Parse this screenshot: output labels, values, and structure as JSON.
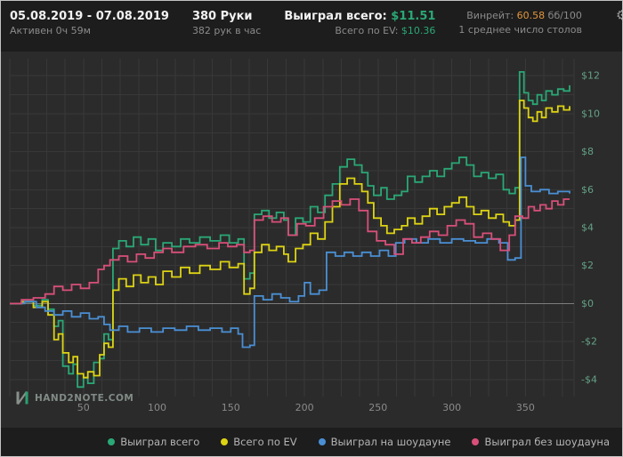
{
  "header": {
    "date_range": "05.08.2019 - 07.08.2019",
    "active_time": "Активен 0ч 59м",
    "hands": "380 Руки",
    "hands_per_hour": "382 рук в час",
    "won_total_label": "Выиграл всего:",
    "won_total_value": "$11.51",
    "ev_total_label": "Всего по EV:",
    "ev_total_value": "$10.36",
    "winrate_label": "Винрейт:",
    "winrate_value": "60.58",
    "winrate_units": "бб/100",
    "avg_tables": "1 среднее число столов",
    "gear_icon": "⚙"
  },
  "logo": {
    "text": "HAND2NOTE.COM"
  },
  "colors": {
    "accent_green": "#2aa876",
    "series_yellow": "#ddd313",
    "series_blue": "#4a8fd4",
    "series_pink": "#d94f7a",
    "winrate_orange": "#e0963c",
    "header_bg": "#1d1d1d",
    "chart_bg": "#2b2b2b"
  },
  "chart_data": {
    "type": "line",
    "step": true,
    "title": "",
    "xlabel": "",
    "ylabel": "",
    "xlim": [
      0,
      383
    ],
    "ylim": [
      -4.9,
      12.9
    ],
    "x_grid_step": 12.5,
    "y_grid_step": 1,
    "grid_color": "#383838",
    "zero_line_color": "#7d7d7d",
    "x_label_color": "#8a8a8a",
    "y_label_color": "#64a186",
    "x_ticks": [
      50,
      100,
      150,
      200,
      250,
      300,
      350
    ],
    "y_ticks": [
      {
        "label": "$12",
        "value": 12
      },
      {
        "label": "$10",
        "value": 10
      },
      {
        "label": "$8",
        "value": 8
      },
      {
        "label": "$6",
        "value": 6
      },
      {
        "label": "$4",
        "value": 4
      },
      {
        "label": "$2",
        "value": 2
      },
      {
        "label": "$0",
        "value": 0
      },
      {
        "label": "-$2",
        "value": -2
      },
      {
        "label": "-$4",
        "value": -4
      }
    ],
    "legend_position": "bottom",
    "series": [
      {
        "name": "Выиграл всего",
        "color": "#2aa876",
        "points": [
          [
            0,
            0
          ],
          [
            8,
            0.1
          ],
          [
            16,
            -0.1
          ],
          [
            22,
            0.2
          ],
          [
            26,
            -0.3
          ],
          [
            30,
            -1.2
          ],
          [
            33,
            -0.9
          ],
          [
            36,
            -3.3
          ],
          [
            40,
            -3.7
          ],
          [
            43,
            -3.2
          ],
          [
            46,
            -4.4
          ],
          [
            50,
            -3.9
          ],
          [
            53,
            -4.2
          ],
          [
            57,
            -3.1
          ],
          [
            61,
            -2.9
          ],
          [
            64,
            -1.6
          ],
          [
            67,
            -1.9
          ],
          [
            70,
            2.9
          ],
          [
            74,
            3.3
          ],
          [
            79,
            3.0
          ],
          [
            84,
            3.5
          ],
          [
            89,
            3.1
          ],
          [
            94,
            3.4
          ],
          [
            99,
            2.8
          ],
          [
            104,
            3.2
          ],
          [
            110,
            3.0
          ],
          [
            116,
            3.4
          ],
          [
            122,
            3.2
          ],
          [
            129,
            3.5
          ],
          [
            136,
            3.3
          ],
          [
            143,
            3.6
          ],
          [
            149,
            3.2
          ],
          [
            155,
            3.4
          ],
          [
            159,
            1.3
          ],
          [
            163,
            1.6
          ],
          [
            166,
            4.7
          ],
          [
            171,
            4.9
          ],
          [
            176,
            4.5
          ],
          [
            181,
            4.8
          ],
          [
            186,
            4.4
          ],
          [
            189,
            3.6
          ],
          [
            194,
            4.5
          ],
          [
            199,
            4.3
          ],
          [
            204,
            5.1
          ],
          [
            209,
            4.8
          ],
          [
            214,
            5.7
          ],
          [
            219,
            6.3
          ],
          [
            224,
            7.2
          ],
          [
            229,
            7.6
          ],
          [
            234,
            7.3
          ],
          [
            239,
            6.9
          ],
          [
            243,
            6.2
          ],
          [
            247,
            5.7
          ],
          [
            252,
            6.1
          ],
          [
            256,
            5.5
          ],
          [
            261,
            5.7
          ],
          [
            266,
            5.9
          ],
          [
            270,
            6.7
          ],
          [
            275,
            6.4
          ],
          [
            280,
            6.7
          ],
          [
            285,
            7.0
          ],
          [
            290,
            6.7
          ],
          [
            295,
            7.1
          ],
          [
            300,
            7.4
          ],
          [
            305,
            7.7
          ],
          [
            310,
            7.3
          ],
          [
            315,
            6.7
          ],
          [
            320,
            6.9
          ],
          [
            325,
            6.6
          ],
          [
            330,
            6.8
          ],
          [
            335,
            6.0
          ],
          [
            339,
            5.8
          ],
          [
            343,
            6.1
          ],
          [
            346,
            12.2
          ],
          [
            349,
            11.1
          ],
          [
            352,
            10.7
          ],
          [
            355,
            10.5
          ],
          [
            358,
            11.0
          ],
          [
            361,
            10.7
          ],
          [
            364,
            11.2
          ],
          [
            368,
            11.0
          ],
          [
            372,
            11.3
          ],
          [
            376,
            11.2
          ],
          [
            380,
            11.5
          ]
        ]
      },
      {
        "name": "Всего по EV",
        "color": "#ddd313",
        "points": [
          [
            0,
            0
          ],
          [
            8,
            0.1
          ],
          [
            16,
            -0.2
          ],
          [
            22,
            0.1
          ],
          [
            26,
            -0.6
          ],
          [
            30,
            -1.9
          ],
          [
            33,
            -1.6
          ],
          [
            36,
            -2.6
          ],
          [
            40,
            -3.1
          ],
          [
            43,
            -2.8
          ],
          [
            46,
            -3.7
          ],
          [
            50,
            -3.9
          ],
          [
            53,
            -3.6
          ],
          [
            57,
            -3.8
          ],
          [
            61,
            -2.7
          ],
          [
            64,
            -2.1
          ],
          [
            67,
            -2.3
          ],
          [
            70,
            0.7
          ],
          [
            74,
            1.3
          ],
          [
            79,
            0.9
          ],
          [
            84,
            1.5
          ],
          [
            89,
            1.1
          ],
          [
            94,
            1.4
          ],
          [
            99,
            1.0
          ],
          [
            104,
            1.7
          ],
          [
            110,
            1.4
          ],
          [
            116,
            1.9
          ],
          [
            122,
            1.6
          ],
          [
            129,
            2.0
          ],
          [
            136,
            1.8
          ],
          [
            143,
            2.2
          ],
          [
            149,
            1.9
          ],
          [
            155,
            2.1
          ],
          [
            159,
            0.5
          ],
          [
            163,
            0.8
          ],
          [
            166,
            2.7
          ],
          [
            171,
            3.1
          ],
          [
            176,
            2.8
          ],
          [
            181,
            3.0
          ],
          [
            186,
            2.6
          ],
          [
            189,
            2.2
          ],
          [
            194,
            2.9
          ],
          [
            199,
            3.1
          ],
          [
            204,
            3.7
          ],
          [
            209,
            3.4
          ],
          [
            214,
            4.3
          ],
          [
            219,
            5.1
          ],
          [
            224,
            6.3
          ],
          [
            229,
            6.6
          ],
          [
            234,
            6.3
          ],
          [
            239,
            5.9
          ],
          [
            243,
            5.3
          ],
          [
            247,
            4.5
          ],
          [
            252,
            4.1
          ],
          [
            256,
            3.7
          ],
          [
            261,
            3.9
          ],
          [
            266,
            4.1
          ],
          [
            270,
            4.5
          ],
          [
            275,
            4.2
          ],
          [
            280,
            4.6
          ],
          [
            285,
            5.0
          ],
          [
            290,
            4.7
          ],
          [
            295,
            5.1
          ],
          [
            300,
            5.3
          ],
          [
            305,
            5.6
          ],
          [
            310,
            5.1
          ],
          [
            315,
            4.7
          ],
          [
            320,
            4.9
          ],
          [
            325,
            4.5
          ],
          [
            330,
            4.7
          ],
          [
            335,
            4.3
          ],
          [
            339,
            4.1
          ],
          [
            343,
            4.4
          ],
          [
            346,
            10.7
          ],
          [
            349,
            10.3
          ],
          [
            352,
            9.8
          ],
          [
            355,
            9.6
          ],
          [
            358,
            10.1
          ],
          [
            361,
            9.8
          ],
          [
            364,
            10.3
          ],
          [
            368,
            10.1
          ],
          [
            372,
            10.4
          ],
          [
            376,
            10.2
          ],
          [
            380,
            10.4
          ]
        ]
      },
      {
        "name": "Выиграл на шоудауне",
        "color": "#4a8fd4",
        "points": [
          [
            0,
            0
          ],
          [
            10,
            0.1
          ],
          [
            18,
            -0.2
          ],
          [
            24,
            -0.4
          ],
          [
            30,
            -0.6
          ],
          [
            36,
            -0.4
          ],
          [
            42,
            -0.7
          ],
          [
            48,
            -0.5
          ],
          [
            54,
            -0.8
          ],
          [
            60,
            -0.7
          ],
          [
            64,
            -1.1
          ],
          [
            68,
            -1.4
          ],
          [
            74,
            -1.2
          ],
          [
            80,
            -1.5
          ],
          [
            88,
            -1.3
          ],
          [
            96,
            -1.5
          ],
          [
            104,
            -1.3
          ],
          [
            112,
            -1.4
          ],
          [
            120,
            -1.2
          ],
          [
            128,
            -1.4
          ],
          [
            136,
            -1.3
          ],
          [
            144,
            -1.5
          ],
          [
            150,
            -1.3
          ],
          [
            155,
            -1.6
          ],
          [
            158,
            -2.3
          ],
          [
            163,
            -2.2
          ],
          [
            166,
            0.4
          ],
          [
            172,
            0.2
          ],
          [
            178,
            0.5
          ],
          [
            184,
            0.3
          ],
          [
            190,
            0.1
          ],
          [
            196,
            0.4
          ],
          [
            200,
            1.1
          ],
          [
            204,
            0.5
          ],
          [
            210,
            0.7
          ],
          [
            215,
            2.7
          ],
          [
            221,
            2.5
          ],
          [
            227,
            2.7
          ],
          [
            233,
            2.5
          ],
          [
            239,
            2.7
          ],
          [
            245,
            2.5
          ],
          [
            251,
            2.8
          ],
          [
            257,
            2.5
          ],
          [
            262,
            3.2
          ],
          [
            268,
            3.4
          ],
          [
            276,
            3.2
          ],
          [
            284,
            3.4
          ],
          [
            292,
            3.2
          ],
          [
            300,
            3.4
          ],
          [
            308,
            3.3
          ],
          [
            316,
            3.2
          ],
          [
            324,
            3.4
          ],
          [
            332,
            3.2
          ],
          [
            338,
            2.3
          ],
          [
            343,
            2.4
          ],
          [
            347,
            7.7
          ],
          [
            350,
            6.2
          ],
          [
            354,
            5.9
          ],
          [
            360,
            6.0
          ],
          [
            366,
            5.8
          ],
          [
            372,
            5.9
          ],
          [
            380,
            5.8
          ]
        ]
      },
      {
        "name": "Выиграл без шоудауна",
        "color": "#d94f7a",
        "points": [
          [
            0,
            0
          ],
          [
            8,
            0.2
          ],
          [
            16,
            0.3
          ],
          [
            24,
            0.5
          ],
          [
            30,
            0.9
          ],
          [
            36,
            0.7
          ],
          [
            42,
            1.0
          ],
          [
            48,
            0.8
          ],
          [
            54,
            1.1
          ],
          [
            60,
            1.8
          ],
          [
            64,
            2.0
          ],
          [
            68,
            2.3
          ],
          [
            74,
            2.5
          ],
          [
            80,
            2.2
          ],
          [
            86,
            2.6
          ],
          [
            92,
            2.4
          ],
          [
            98,
            2.7
          ],
          [
            104,
            2.9
          ],
          [
            110,
            2.7
          ],
          [
            118,
            3.0
          ],
          [
            126,
            3.1
          ],
          [
            134,
            2.9
          ],
          [
            142,
            3.2
          ],
          [
            148,
            3.0
          ],
          [
            154,
            3.1
          ],
          [
            159,
            2.7
          ],
          [
            163,
            2.8
          ],
          [
            166,
            4.4
          ],
          [
            172,
            4.6
          ],
          [
            178,
            4.3
          ],
          [
            184,
            4.5
          ],
          [
            189,
            3.6
          ],
          [
            195,
            4.2
          ],
          [
            201,
            4.1
          ],
          [
            207,
            4.5
          ],
          [
            213,
            5.1
          ],
          [
            219,
            5.4
          ],
          [
            225,
            5.2
          ],
          [
            231,
            5.5
          ],
          [
            237,
            4.9
          ],
          [
            243,
            3.8
          ],
          [
            249,
            3.3
          ],
          [
            255,
            3.1
          ],
          [
            261,
            2.6
          ],
          [
            267,
            3.4
          ],
          [
            273,
            3.2
          ],
          [
            279,
            3.5
          ],
          [
            285,
            3.8
          ],
          [
            291,
            3.6
          ],
          [
            297,
            4.1
          ],
          [
            303,
            4.4
          ],
          [
            309,
            4.2
          ],
          [
            315,
            3.5
          ],
          [
            321,
            3.7
          ],
          [
            327,
            3.4
          ],
          [
            333,
            2.8
          ],
          [
            339,
            3.6
          ],
          [
            343,
            4.6
          ],
          [
            348,
            4.5
          ],
          [
            352,
            5.1
          ],
          [
            356,
            4.9
          ],
          [
            360,
            5.2
          ],
          [
            364,
            5.0
          ],
          [
            368,
            5.4
          ],
          [
            372,
            5.2
          ],
          [
            376,
            5.5
          ],
          [
            380,
            5.5
          ]
        ]
      }
    ]
  }
}
